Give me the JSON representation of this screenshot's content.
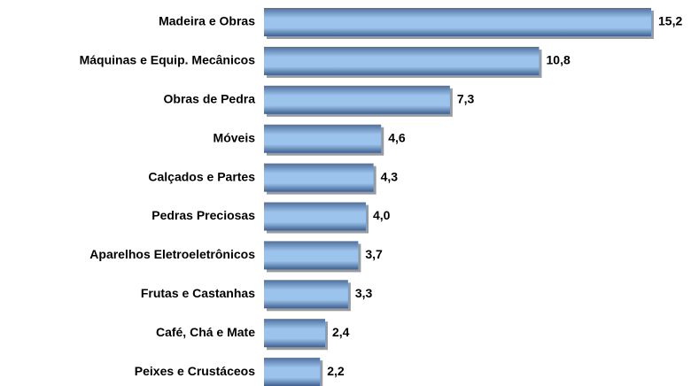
{
  "chart_data": {
    "type": "bar",
    "orientation": "horizontal",
    "categories": [
      "Madeira e Obras",
      "Máquinas e Equip. Mecânicos",
      "Obras de Pedra",
      "Móveis",
      "Calçados e Partes",
      "Pedras Preciosas",
      "Aparelhos Eletroeletrônicos",
      "Frutas e Castanhas",
      "Café, Chá e Mate",
      "Peixes e Crustáceos"
    ],
    "values": [
      15.2,
      10.8,
      7.3,
      4.6,
      4.3,
      4.0,
      3.7,
      3.3,
      2.4,
      2.2
    ],
    "value_labels": [
      "15,2",
      "10,8",
      "7,3",
      "4,6",
      "4,3",
      "4,0",
      "3,7",
      "3,3",
      "2,4",
      "2,2"
    ],
    "color": "#9cc3ec"
  }
}
